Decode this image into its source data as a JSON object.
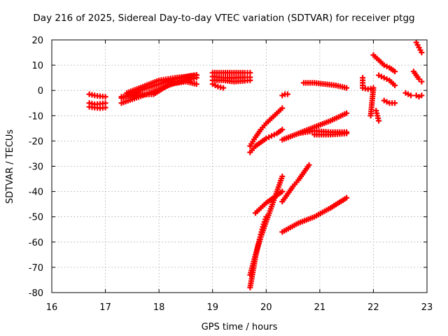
{
  "chart_data": {
    "type": "scatter",
    "title": "Day 216 of 2025, Sidereal Day-to-day VTEC variation (SDTVAR) for receiver ptgg",
    "xlabel": "GPS time / hours",
    "ylabel": "SDTVAR / TECUs",
    "xlim": [
      16,
      23
    ],
    "ylim": [
      -80,
      20
    ],
    "xticks": [
      "16",
      "17",
      "18",
      "19",
      "20",
      "21",
      "22",
      "23"
    ],
    "yticks": [
      "20",
      "10",
      "0",
      "-10",
      "-20",
      "-30",
      "-40",
      "-50",
      "-60",
      "-70",
      "-80"
    ],
    "grid": true,
    "marker": "+",
    "color": "#ff0000",
    "series": [
      {
        "x": [
          16.7,
          16.8,
          16.9,
          17.0
        ],
        "y": [
          -1.5,
          -2.0,
          -2.3,
          -2.5
        ]
      },
      {
        "x": [
          16.7,
          16.8,
          16.9,
          17.0
        ],
        "y": [
          -5.0,
          -5.5,
          -5.3,
          -5.0
        ]
      },
      {
        "x": [
          16.7,
          16.8,
          16.9,
          17.0
        ],
        "y": [
          -6.5,
          -6.8,
          -7.0,
          -6.8
        ]
      },
      {
        "x": [
          17.3,
          17.5,
          17.7,
          18.0,
          18.3,
          18.6,
          18.7
        ],
        "y": [
          -5.0,
          -3.5,
          -2.0,
          0.5,
          3.0,
          4.5,
          5.0
        ]
      },
      {
        "x": [
          17.3,
          17.5,
          17.7,
          18.0,
          18.3,
          18.6,
          18.7
        ],
        "y": [
          -3.0,
          -1.5,
          0.5,
          2.5,
          4.5,
          5.8,
          6.2
        ]
      },
      {
        "x": [
          17.4,
          17.7,
          18.0,
          18.3,
          18.7
        ],
        "y": [
          -1.0,
          1.5,
          4.0,
          5.0,
          6.0
        ]
      },
      {
        "x": [
          17.3,
          17.6,
          17.9,
          18.2,
          18.5,
          18.7
        ],
        "y": [
          -2.5,
          -1.8,
          -1.5,
          2.5,
          3.5,
          2.5
        ]
      },
      {
        "x": [
          19.0,
          19.2,
          19.4,
          19.6,
          19.7
        ],
        "y": [
          7.0,
          7.0,
          7.0,
          7.0,
          7.0
        ]
      },
      {
        "x": [
          19.0,
          19.2,
          19.4,
          19.6,
          19.7
        ],
        "y": [
          5.5,
          5.0,
          5.0,
          5.2,
          5.2
        ]
      },
      {
        "x": [
          19.0,
          19.2,
          19.4,
          19.6,
          19.7
        ],
        "y": [
          4.0,
          4.0,
          3.5,
          3.8,
          4.0
        ]
      },
      {
        "x": [
          19.0,
          19.1,
          19.2
        ],
        "y": [
          2.5,
          1.5,
          1.0
        ]
      },
      {
        "x": [
          19.7,
          19.8,
          19.9,
          20.0,
          20.1,
          20.2,
          20.3
        ],
        "y": [
          -22.0,
          -18.5,
          -15.5,
          -13.0,
          -11.0,
          -9.0,
          -7.0
        ]
      },
      {
        "x": [
          19.7,
          19.8,
          19.9,
          20.0,
          20.1,
          20.2,
          20.3
        ],
        "y": [
          -24.5,
          -22.0,
          -20.5,
          -19.0,
          -18.0,
          -17.0,
          -15.5
        ]
      },
      {
        "x": [
          19.7,
          19.75,
          19.8,
          19.85,
          19.9,
          19.95,
          20.0
        ],
        "y": [
          -78.0,
          -72.0,
          -66.0,
          -61.0,
          -57.0,
          -53.0,
          -50.0
        ]
      },
      {
        "x": [
          19.7,
          19.8,
          19.9,
          20.0,
          20.1,
          20.2,
          20.3
        ],
        "y": [
          -73.0,
          -65.0,
          -58.0,
          -52.0,
          -46.0,
          -40.0,
          -34.0
        ]
      },
      {
        "x": [
          19.8,
          19.9,
          20.0,
          20.1,
          20.2,
          20.3
        ],
        "y": [
          -48.5,
          -46.5,
          -44.5,
          -43.0,
          -41.5,
          -40.0
        ]
      },
      {
        "x": [
          20.3,
          20.4,
          20.5,
          20.6,
          20.7,
          20.8
        ],
        "y": [
          -44.0,
          -41.0,
          -38.0,
          -35.5,
          -32.5,
          -29.5
        ]
      },
      {
        "x": [
          20.3,
          20.35,
          20.4
        ],
        "y": [
          -2.0,
          -1.5,
          -1.5
        ]
      },
      {
        "x": [
          20.7,
          20.9,
          21.1,
          21.3,
          21.5
        ],
        "y": [
          3.0,
          3.0,
          2.5,
          2.0,
          1.0
        ]
      },
      {
        "x": [
          20.3,
          20.6,
          20.9,
          21.2,
          21.5
        ],
        "y": [
          -19.5,
          -17.0,
          -14.5,
          -12.0,
          -9.0
        ]
      },
      {
        "x": [
          20.6,
          20.9,
          21.2,
          21.5
        ],
        "y": [
          -17.0,
          -16.0,
          -16.5,
          -16.5
        ]
      },
      {
        "x": [
          20.9,
          21.2,
          21.5
        ],
        "y": [
          -17.5,
          -17.5,
          -17.0
        ]
      },
      {
        "x": [
          20.3,
          20.6,
          20.9,
          21.2,
          21.5
        ],
        "y": [
          -56.0,
          -52.5,
          -50.0,
          -46.5,
          -42.5
        ]
      },
      {
        "x": [
          21.8,
          21.8,
          21.9,
          22.0,
          21.95
        ],
        "y": [
          5.0,
          1.0,
          0.5,
          1.0,
          -10.0
        ]
      },
      {
        "x": [
          22.0,
          22.1,
          22.2,
          22.3,
          22.4
        ],
        "y": [
          14.0,
          12.0,
          10.0,
          9.0,
          7.5
        ]
      },
      {
        "x": [
          22.1,
          22.2,
          22.3,
          22.4
        ],
        "y": [
          6.0,
          5.0,
          4.0,
          2.0
        ]
      },
      {
        "x": [
          22.2,
          22.3,
          22.4
        ],
        "y": [
          -4.0,
          -5.0,
          -5.0
        ]
      },
      {
        "x": [
          22.05,
          22.1
        ],
        "y": [
          -8.0,
          -12.0
        ]
      },
      {
        "x": [
          22.6,
          22.7
        ],
        "y": [
          -1.0,
          -2.0
        ]
      },
      {
        "x": [
          22.8,
          22.85,
          22.9
        ],
        "y": [
          19.0,
          17.0,
          15.0
        ]
      },
      {
        "x": [
          22.75,
          22.8,
          22.85,
          22.9
        ],
        "y": [
          7.5,
          6.0,
          4.5,
          3.5
        ]
      },
      {
        "x": [
          22.8,
          22.85,
          22.9
        ],
        "y": [
          -2.0,
          -2.5,
          -2.0
        ]
      }
    ]
  }
}
